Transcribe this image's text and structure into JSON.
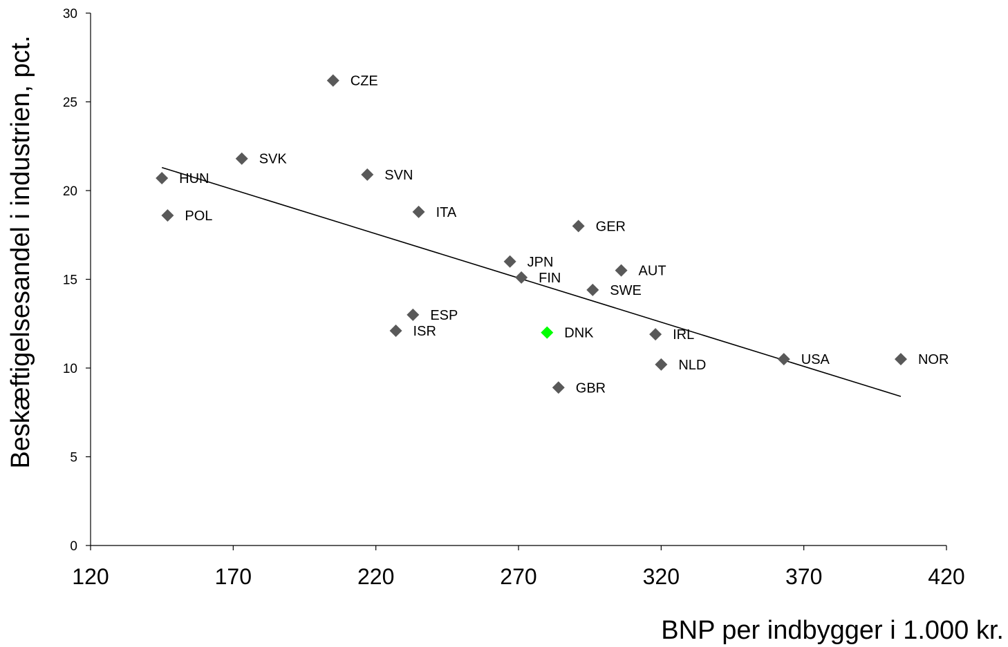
{
  "chart_data": {
    "type": "scatter",
    "title": "",
    "xlabel": "BNP per indbygger i 1.000 kr.",
    "ylabel": "Beskæftigelsesandel i industrien, pct.",
    "xlim": [
      120,
      420
    ],
    "ylim": [
      0,
      30
    ],
    "xticks": [
      "120",
      "170",
      "220",
      "270",
      "320",
      "370",
      "420"
    ],
    "yticks": [
      "0",
      "5",
      "10",
      "15",
      "20",
      "25",
      "30"
    ],
    "grid": false,
    "legend": "none",
    "colors": {
      "point": "#595959",
      "highlight": "#00ff00",
      "trendline": "#000000",
      "axis": "#000000"
    },
    "points": [
      {
        "label": "CZE",
        "x": 205,
        "y": 26.2
      },
      {
        "label": "SVK",
        "x": 173,
        "y": 21.8
      },
      {
        "label": "HUN",
        "x": 145,
        "y": 20.7
      },
      {
        "label": "SVN",
        "x": 217,
        "y": 20.9
      },
      {
        "label": "POL",
        "x": 147,
        "y": 18.6
      },
      {
        "label": "ITA",
        "x": 235,
        "y": 18.8
      },
      {
        "label": "GER",
        "x": 291,
        "y": 18.0
      },
      {
        "label": "JPN",
        "x": 267,
        "y": 16.0
      },
      {
        "label": "FIN",
        "x": 271,
        "y": 15.1
      },
      {
        "label": "AUT",
        "x": 306,
        "y": 15.5
      },
      {
        "label": "SWE",
        "x": 296,
        "y": 14.4
      },
      {
        "label": "ESP",
        "x": 233,
        "y": 13.0
      },
      {
        "label": "ISR",
        "x": 227,
        "y": 12.1
      },
      {
        "label": "DNK",
        "x": 280,
        "y": 12.0,
        "highlight": true
      },
      {
        "label": "IRL",
        "x": 318,
        "y": 11.9
      },
      {
        "label": "NLD",
        "x": 320,
        "y": 10.2
      },
      {
        "label": "USA",
        "x": 363,
        "y": 10.5
      },
      {
        "label": "NOR",
        "x": 404,
        "y": 10.5
      },
      {
        "label": "GBR",
        "x": 284,
        "y": 8.9
      }
    ],
    "trendline": {
      "x": [
        145,
        404
      ],
      "y": [
        21.3,
        8.4
      ]
    }
  }
}
